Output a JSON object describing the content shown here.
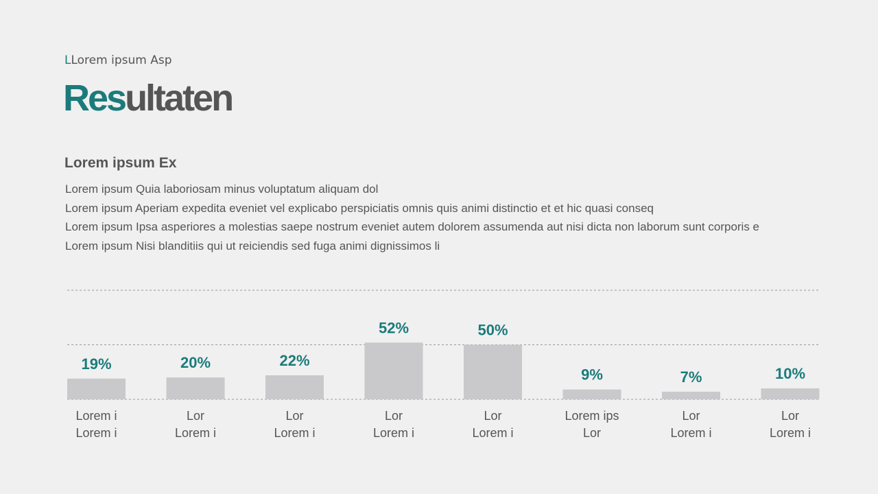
{
  "header": {
    "kicker_parts": [
      "L",
      "Lorem ipsum Asp"
    ],
    "title_parts": [
      "Res",
      "ultaten"
    ]
  },
  "section": {
    "heading": "Lorem ipsum Ex",
    "paragraphs": [
      "Lorem ipsum Quia laboriosam minus voluptatum aliquam dol",
      "Lorem ipsum Aperiam expedita eveniet vel explicabo perspiciatis omnis quis animi distinctio et et hic quasi conseq",
      "Lorem ipsum Ipsa asperiores a molestias saepe nostrum eveniet autem dolorem assumenda aut nisi dicta non laborum sunt corporis e",
      "Lorem ipsum Nisi blanditiis qui ut reiciendis sed fuga animi dignissimos li"
    ]
  },
  "chart_data": {
    "type": "bar",
    "categories": [
      "Lorem i\nLorem i",
      "Lor\nLorem i",
      "Lor\nLorem i",
      "Lor\nLorem i",
      "Lor\nLorem i",
      "Lorem ips\nLor",
      "Lor\nLorem i",
      "Lor\nLorem i"
    ],
    "values": [
      19,
      20,
      22,
      52,
      50,
      9,
      7,
      10
    ],
    "value_labels": [
      "19%",
      "20%",
      "22%",
      "52%",
      "50%",
      "9%",
      "7%",
      "10%"
    ],
    "color": "#c9c8ca",
    "label_color": "#1b7b7b",
    "ylim": [
      0,
      100
    ],
    "yticks": [
      0,
      50,
      100
    ],
    "grid": true
  }
}
